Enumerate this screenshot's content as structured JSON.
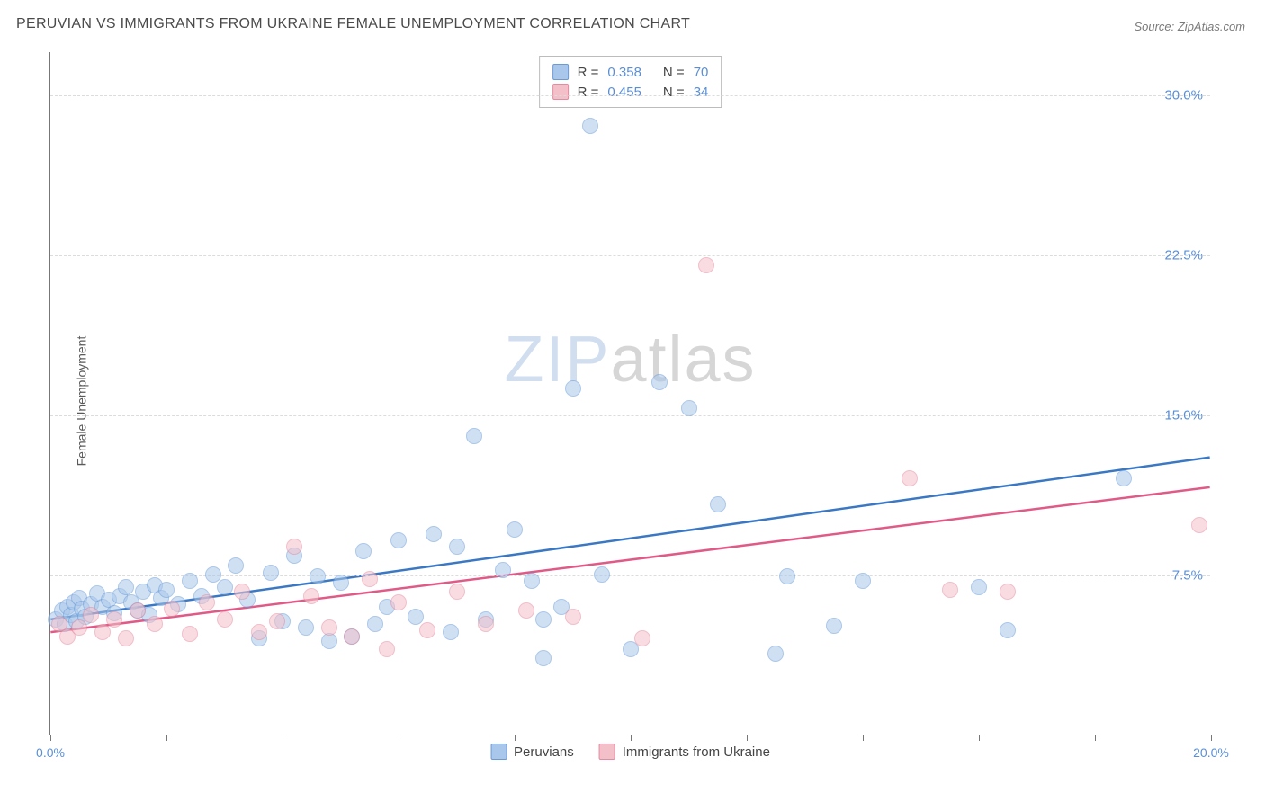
{
  "title": "PERUVIAN VS IMMIGRANTS FROM UKRAINE FEMALE UNEMPLOYMENT CORRELATION CHART",
  "source_label": "Source: ZipAtlas.com",
  "ylabel": "Female Unemployment",
  "watermark": {
    "part1": "ZIP",
    "part2": "atlas"
  },
  "chart": {
    "type": "scatter",
    "xlim": [
      0,
      20
    ],
    "ylim": [
      0,
      32
    ],
    "x_ticks": [
      0,
      2,
      4,
      6,
      8,
      10,
      12,
      14,
      16,
      18,
      20
    ],
    "x_tick_labels_shown": {
      "0": "0.0%",
      "20": "20.0%"
    },
    "y_gridlines": [
      7.5,
      15.0,
      22.5,
      30.0
    ],
    "y_tick_labels": [
      "7.5%",
      "15.0%",
      "22.5%",
      "30.0%"
    ],
    "tick_label_color": "#5a8fd6",
    "grid_color": "#dcdcdc",
    "axis_color": "#777777",
    "background_color": "#ffffff",
    "marker_radius": 9,
    "marker_opacity": 0.55,
    "series": [
      {
        "name": "Peruvians",
        "fill": "#a9c7ea",
        "stroke": "#6a9bd8",
        "trend_color": "#3b78c4",
        "trend": {
          "x1": 0,
          "y1": 5.4,
          "x2": 20,
          "y2": 13.0
        },
        "r": "0.358",
        "n": "70",
        "points": [
          [
            0.1,
            5.4
          ],
          [
            0.2,
            5.8
          ],
          [
            0.25,
            5.2
          ],
          [
            0.3,
            6.0
          ],
          [
            0.35,
            5.6
          ],
          [
            0.4,
            6.2
          ],
          [
            0.45,
            5.3
          ],
          [
            0.5,
            6.4
          ],
          [
            0.55,
            5.9
          ],
          [
            0.6,
            5.5
          ],
          [
            0.7,
            6.1
          ],
          [
            0.8,
            6.6
          ],
          [
            0.9,
            6.0
          ],
          [
            1.0,
            6.3
          ],
          [
            1.1,
            5.7
          ],
          [
            1.2,
            6.5
          ],
          [
            1.3,
            6.9
          ],
          [
            1.4,
            6.2
          ],
          [
            1.5,
            5.8
          ],
          [
            1.6,
            6.7
          ],
          [
            1.7,
            5.6
          ],
          [
            1.8,
            7.0
          ],
          [
            1.9,
            6.4
          ],
          [
            2.0,
            6.8
          ],
          [
            2.2,
            6.1
          ],
          [
            2.4,
            7.2
          ],
          [
            2.6,
            6.5
          ],
          [
            2.8,
            7.5
          ],
          [
            3.0,
            6.9
          ],
          [
            3.2,
            7.9
          ],
          [
            3.4,
            6.3
          ],
          [
            3.6,
            4.5
          ],
          [
            3.8,
            7.6
          ],
          [
            4.0,
            5.3
          ],
          [
            4.2,
            8.4
          ],
          [
            4.4,
            5.0
          ],
          [
            4.6,
            7.4
          ],
          [
            4.8,
            4.4
          ],
          [
            5.0,
            7.1
          ],
          [
            5.2,
            4.6
          ],
          [
            5.4,
            8.6
          ],
          [
            5.6,
            5.2
          ],
          [
            5.8,
            6.0
          ],
          [
            6.0,
            9.1
          ],
          [
            6.3,
            5.5
          ],
          [
            6.6,
            9.4
          ],
          [
            6.9,
            4.8
          ],
          [
            7.0,
            8.8
          ],
          [
            7.3,
            14.0
          ],
          [
            7.5,
            5.4
          ],
          [
            7.8,
            7.7
          ],
          [
            8.0,
            9.6
          ],
          [
            8.3,
            7.2
          ],
          [
            8.5,
            5.4
          ],
          [
            8.5,
            3.6
          ],
          [
            8.8,
            6.0
          ],
          [
            9.0,
            16.2
          ],
          [
            9.3,
            28.5
          ],
          [
            9.5,
            7.5
          ],
          [
            10.0,
            4.0
          ],
          [
            10.5,
            16.5
          ],
          [
            11.0,
            15.3
          ],
          [
            11.5,
            10.8
          ],
          [
            12.5,
            3.8
          ],
          [
            12.7,
            7.4
          ],
          [
            13.5,
            5.1
          ],
          [
            14.0,
            7.2
          ],
          [
            16.0,
            6.9
          ],
          [
            16.5,
            4.9
          ],
          [
            18.5,
            12.0
          ]
        ]
      },
      {
        "name": "Immigrants from Ukraine",
        "fill": "#f3c0ca",
        "stroke": "#e68aa0",
        "trend_color": "#e05a87",
        "trend": {
          "x1": 0,
          "y1": 4.8,
          "x2": 20,
          "y2": 11.6
        },
        "r": "0.455",
        "n": "34",
        "points": [
          [
            0.15,
            5.2
          ],
          [
            0.3,
            4.6
          ],
          [
            0.5,
            5.0
          ],
          [
            0.7,
            5.6
          ],
          [
            0.9,
            4.8
          ],
          [
            1.1,
            5.4
          ],
          [
            1.3,
            4.5
          ],
          [
            1.5,
            5.8
          ],
          [
            1.8,
            5.2
          ],
          [
            2.1,
            5.9
          ],
          [
            2.4,
            4.7
          ],
          [
            2.7,
            6.2
          ],
          [
            3.0,
            5.4
          ],
          [
            3.3,
            6.7
          ],
          [
            3.6,
            4.8
          ],
          [
            3.9,
            5.3
          ],
          [
            4.2,
            8.8
          ],
          [
            4.5,
            6.5
          ],
          [
            4.8,
            5.0
          ],
          [
            5.2,
            4.6
          ],
          [
            5.5,
            7.3
          ],
          [
            5.8,
            4.0
          ],
          [
            6.0,
            6.2
          ],
          [
            6.5,
            4.9
          ],
          [
            7.0,
            6.7
          ],
          [
            7.5,
            5.2
          ],
          [
            8.2,
            5.8
          ],
          [
            10.2,
            4.5
          ],
          [
            11.3,
            22.0
          ],
          [
            14.8,
            12.0
          ],
          [
            15.5,
            6.8
          ],
          [
            16.5,
            6.7
          ],
          [
            19.8,
            9.8
          ],
          [
            9.0,
            5.5
          ]
        ]
      }
    ]
  },
  "stats_legend": {
    "r_label": "R =",
    "n_label": "N ="
  },
  "bottom_legend": {
    "items": [
      "Peruvians",
      "Immigrants from Ukraine"
    ]
  }
}
